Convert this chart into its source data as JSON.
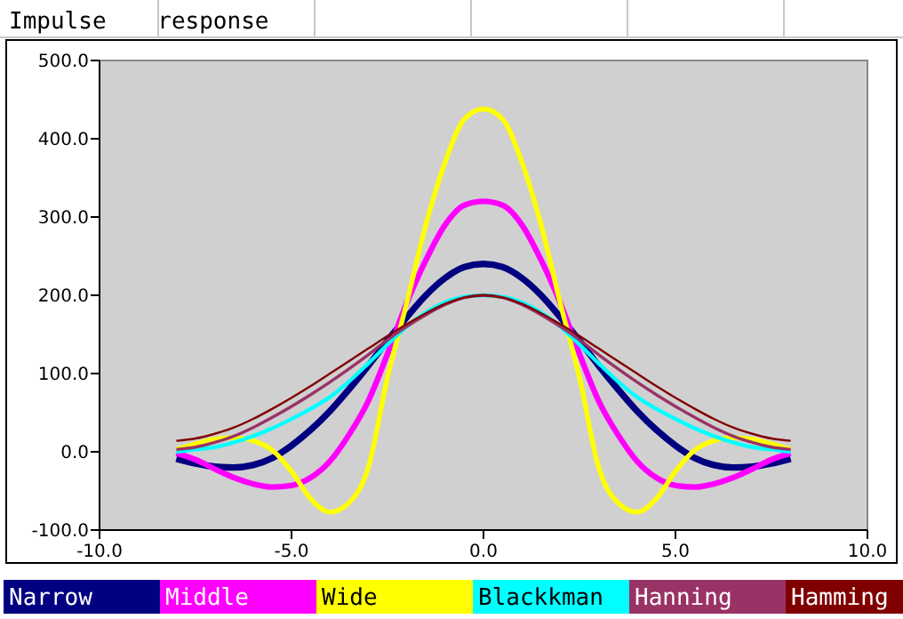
{
  "chart_data": {
    "type": "line",
    "title": "Impulse response",
    "x": [
      -8,
      -7.5,
      -7,
      -6.5,
      -6,
      -5.5,
      -5,
      -4.5,
      -4,
      -3.5,
      -3,
      -2.5,
      -2,
      -1.5,
      -1,
      -0.5,
      0,
      0.5,
      1,
      1.5,
      2,
      2.5,
      3,
      3.5,
      4,
      4.5,
      5,
      5.5,
      6,
      6.5,
      7,
      7.5,
      8
    ],
    "series": [
      {
        "name": "Narrow",
        "color": "#000080",
        "values": [
          -9,
          -15,
          -19,
          -20,
          -17,
          -8,
          8,
          28,
          52,
          80,
          110,
          142,
          172,
          200,
          222,
          236,
          240,
          236,
          222,
          200,
          172,
          142,
          110,
          80,
          52,
          28,
          8,
          -8,
          -17,
          -20,
          -19,
          -15,
          -9
        ]
      },
      {
        "name": "Middle",
        "color": "#ff00ff",
        "values": [
          -2,
          -10,
          -22,
          -33,
          -41,
          -45,
          -43,
          -33,
          -12,
          22,
          65,
          125,
          190,
          245,
          290,
          315,
          320,
          315,
          290,
          245,
          190,
          125,
          65,
          22,
          -12,
          -33,
          -43,
          -45,
          -41,
          -33,
          -22,
          -10,
          -2
        ]
      },
      {
        "name": "Wide",
        "color": "#ffff00",
        "values": [
          3,
          10,
          16,
          18,
          14,
          2,
          -25,
          -60,
          -77,
          -65,
          -20,
          95,
          190,
          290,
          370,
          425,
          438,
          425,
          370,
          290,
          190,
          95,
          -20,
          -65,
          -77,
          -60,
          -25,
          2,
          14,
          18,
          16,
          10,
          3
        ]
      },
      {
        "name": "Blackkman",
        "color": "#00ffff",
        "values": [
          0,
          3,
          6,
          12,
          20,
          30,
          42,
          55,
          70,
          90,
          113,
          137,
          160,
          178,
          191,
          198,
          200,
          198,
          191,
          178,
          160,
          137,
          113,
          90,
          70,
          55,
          42,
          30,
          20,
          12,
          6,
          3,
          0
        ]
      },
      {
        "name": "Hanning",
        "color": "#993366",
        "values": [
          3,
          6,
          12,
          20,
          31,
          44,
          58,
          73,
          89,
          106,
          124,
          143,
          160,
          175,
          188,
          197,
          200,
          197,
          188,
          175,
          160,
          143,
          124,
          106,
          89,
          73,
          58,
          44,
          31,
          20,
          12,
          6,
          3
        ]
      },
      {
        "name": "Hamming",
        "color": "#800000",
        "values": [
          14,
          17,
          23,
          31,
          42,
          55,
          69,
          84,
          100,
          116,
          132,
          148,
          163,
          177,
          189,
          197,
          200,
          197,
          189,
          177,
          163,
          148,
          132,
          116,
          100,
          84,
          69,
          55,
          42,
          31,
          23,
          17,
          14
        ]
      }
    ],
    "xlim": [
      -10,
      10
    ],
    "xticks": [
      {
        "value": -10,
        "label": "-10.0"
      },
      {
        "value": -5,
        "label": "-5.0"
      },
      {
        "value": 0,
        "label": "0.0"
      },
      {
        "value": 5,
        "label": "5.0"
      },
      {
        "value": 10,
        "label": "10.0"
      }
    ],
    "ylim": [
      -100,
      500
    ],
    "yticks": [
      {
        "value": -100,
        "label": "-100.0"
      },
      {
        "value": 0,
        "label": "0.0"
      },
      {
        "value": 100,
        "label": "100.0"
      },
      {
        "value": 200,
        "label": "200.0"
      },
      {
        "value": 300,
        "label": "300.0"
      },
      {
        "value": 400,
        "label": "400.0"
      },
      {
        "value": 500,
        "label": "500.0"
      }
    ],
    "grid": false,
    "legend": "bottom",
    "marker": "none",
    "line_style": "solid"
  }
}
